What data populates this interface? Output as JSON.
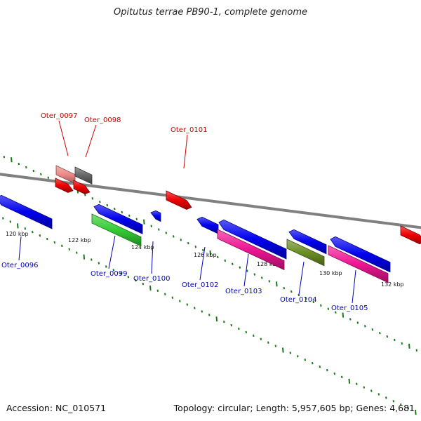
{
  "title": "Opitutus terrae PB90-1, complete genome",
  "footer": {
    "accession": "Accession: NC_010571",
    "summary": "Topology: circular; Length: 5,957,605 bp; Genes: 4,681"
  },
  "colors": {
    "forward_label": "#cc0000",
    "reverse_label": "#0000bb",
    "ruler_tick": "#1a7a1a",
    "backbone": "#808080",
    "red": "#ee0000",
    "blue": "#0000ee",
    "pink": "#ee1493",
    "green": "#33cc33",
    "olive": "#6b8e23",
    "gray": "#666666",
    "lightred": "#ee8888"
  },
  "ruler_labels": [
    "120 kbp",
    "122 kbp",
    "124 kbp",
    "126 kbp",
    "128 kbp",
    "130 kbp",
    "132 kbp"
  ],
  "forward_gene_labels": [
    "Oter_0097",
    "Oter_0098",
    "Oter_0101"
  ],
  "reverse_gene_labels": [
    "Oter_0096",
    "Oter_0099",
    "Oter_0100",
    "Oter_0102",
    "Oter_0103",
    "Oter_0104",
    "Oter_0105"
  ]
}
